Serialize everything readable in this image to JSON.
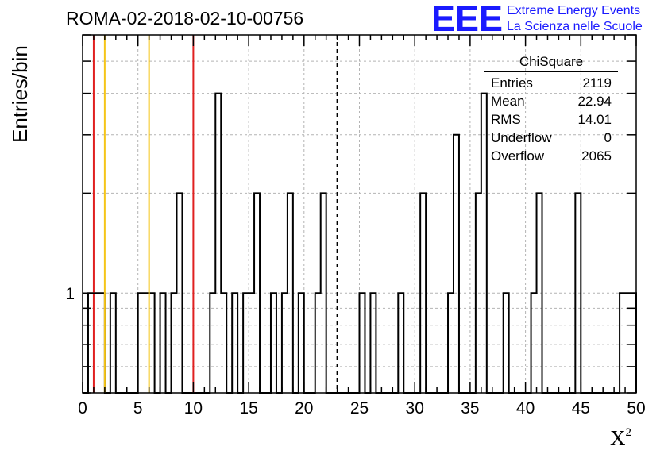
{
  "title": "ROMA-02-2018-02-10-00756",
  "logo": {
    "letters": "EEE",
    "line1": "Extreme Energy Events",
    "line2": "La Scienza nelle Scuole",
    "color": "#1a1aff"
  },
  "stats_box": {
    "title": "ChiSquare",
    "rows": [
      {
        "label": "Entries",
        "value": "2119"
      },
      {
        "label": "Mean",
        "value": "22.94"
      },
      {
        "label": "RMS",
        "value": "14.01"
      },
      {
        "label": "Underflow",
        "value": "0"
      },
      {
        "label": "Overflow",
        "value": "2065"
      }
    ]
  },
  "chart_data": {
    "type": "bar",
    "title": "ROMA-02-2018-02-10-00756",
    "xlabel": "X",
    "xlabel_superscript": "2",
    "ylabel": "Entries/bin",
    "xlim": [
      0,
      50
    ],
    "ylim": [
      0.5,
      6
    ],
    "y_log": true,
    "bin_width": 0.5,
    "x_ticks": [
      0,
      5,
      10,
      15,
      20,
      25,
      30,
      35,
      40,
      45,
      50
    ],
    "y_tick_labels": [
      {
        "value": 1,
        "label": "1"
      }
    ],
    "grid": true,
    "bins": [
      {
        "x": 0.5,
        "value": 1
      },
      {
        "x": 1.0,
        "value": 1
      },
      {
        "x": 1.5,
        "value": 1
      },
      {
        "x": 2.5,
        "value": 1
      },
      {
        "x": 5.0,
        "value": 1
      },
      {
        "x": 5.5,
        "value": 1
      },
      {
        "x": 6.0,
        "value": 1
      },
      {
        "x": 7.0,
        "value": 1
      },
      {
        "x": 8.0,
        "value": 1
      },
      {
        "x": 8.5,
        "value": 2
      },
      {
        "x": 11.5,
        "value": 1
      },
      {
        "x": 12.0,
        "value": 4
      },
      {
        "x": 12.5,
        "value": 1
      },
      {
        "x": 13.5,
        "value": 1
      },
      {
        "x": 14.5,
        "value": 1
      },
      {
        "x": 15.0,
        "value": 1
      },
      {
        "x": 15.5,
        "value": 2
      },
      {
        "x": 17.0,
        "value": 1
      },
      {
        "x": 18.0,
        "value": 1
      },
      {
        "x": 18.5,
        "value": 2
      },
      {
        "x": 19.5,
        "value": 1
      },
      {
        "x": 21.0,
        "value": 1
      },
      {
        "x": 21.5,
        "value": 2
      },
      {
        "x": 25.0,
        "value": 1
      },
      {
        "x": 26.0,
        "value": 1
      },
      {
        "x": 28.5,
        "value": 1
      },
      {
        "x": 30.5,
        "value": 2
      },
      {
        "x": 33.0,
        "value": 1
      },
      {
        "x": 33.5,
        "value": 3
      },
      {
        "x": 35.5,
        "value": 2
      },
      {
        "x": 36.0,
        "value": 4
      },
      {
        "x": 38.0,
        "value": 1
      },
      {
        "x": 40.5,
        "value": 1
      },
      {
        "x": 41.0,
        "value": 2
      },
      {
        "x": 44.5,
        "value": 2
      },
      {
        "x": 48.5,
        "value": 1
      },
      {
        "x": 49.0,
        "value": 1
      },
      {
        "x": 49.5,
        "value": 1
      }
    ],
    "vertical_lines": [
      {
        "x": 1,
        "color": "#e02020",
        "style": "solid"
      },
      {
        "x": 2,
        "color": "#f5c518",
        "style": "solid"
      },
      {
        "x": 6,
        "color": "#f5c518",
        "style": "solid"
      },
      {
        "x": 10,
        "color": "#e02020",
        "style": "solid"
      },
      {
        "x": 23,
        "color": "#000000",
        "style": "dashed"
      }
    ]
  }
}
